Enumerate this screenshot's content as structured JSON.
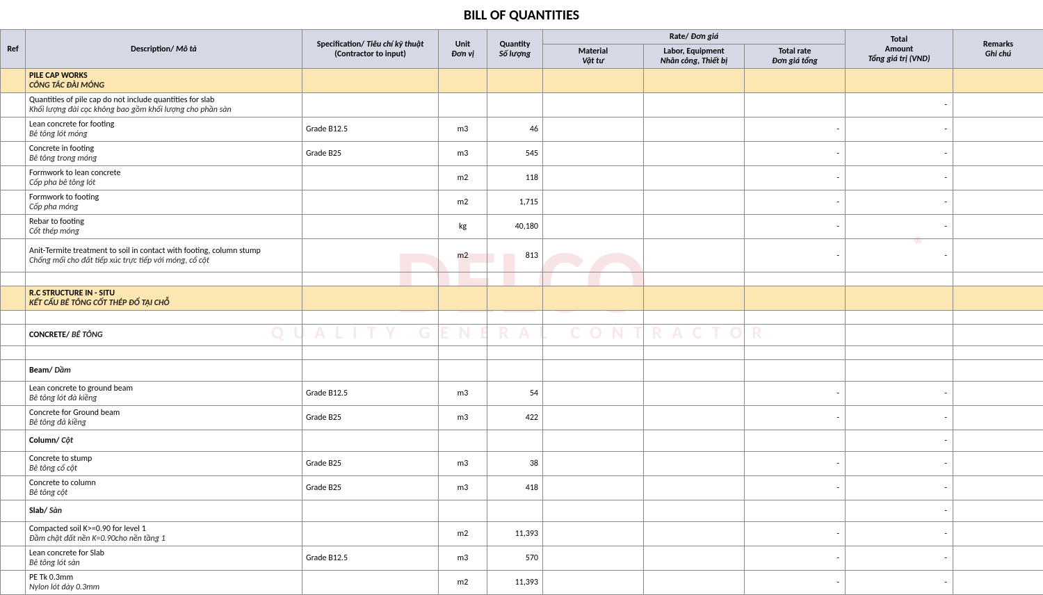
{
  "title": "BILL OF QUANTITIES",
  "watermark": {
    "main": "DELCO",
    "sub": "QUALITY GENERAL CONTRACTOR",
    "reg": "®"
  },
  "header": {
    "ref": "Ref",
    "desc_en": "Description/",
    "desc_vn": "Mô tả",
    "spec_en": "Specification/",
    "spec_vn": "Tiêu chí kỹ thuật",
    "spec_sub": "(Contractor to input)",
    "unit_en": "Unit",
    "unit_vn": "Đơn vị",
    "qty_en": "Quantity",
    "qty_vn": "Số lượng",
    "rate_group_en": "Rate/",
    "rate_group_vn": "Đơn giá",
    "mat_en": "Material",
    "mat_vn": "Vật tư",
    "lab_en": "Labor, Equipment",
    "lab_vn": "Nhân công, Thiết bị",
    "rate_en": "Total rate",
    "rate_vn": "Đơn giá tổng",
    "total_en1": "Total",
    "total_en2": "Amount",
    "total_vn": "Tổng giá trị (VND)",
    "rem_en": "Remarks",
    "rem_vn": "Ghi chú"
  },
  "rows": [
    {
      "type": "section",
      "desc_en": "PILE CAP WORKS",
      "desc_vn": "CÔNG TÁC ĐÀI MÓNG"
    },
    {
      "type": "item",
      "desc_en": "Quantities of pile cap do not include quantities for slab",
      "desc_vn": "Khối lượng đài cọc không bao gồm khối lượng cho phần sàn",
      "spec": "",
      "unit": "",
      "qty": "",
      "rate": "",
      "total": "-"
    },
    {
      "type": "item",
      "desc_en": "Lean concrete for footing",
      "desc_vn": "Bê tông lót móng",
      "spec": "Grade B12.5",
      "unit": "m3",
      "qty": "46",
      "rate": "-",
      "total": "-"
    },
    {
      "type": "item",
      "desc_en": "Concrete in footing",
      "desc_vn": "Bê tông trong móng",
      "spec": "Grade B25",
      "unit": "m3",
      "qty": "545",
      "rate": "-",
      "total": "-"
    },
    {
      "type": "item",
      "desc_en": "Formwork to lean concrete",
      "desc_vn": "Cốp pha bê tông lót",
      "spec": "",
      "unit": "m2",
      "qty": "118",
      "rate": "-",
      "total": "-"
    },
    {
      "type": "item",
      "desc_en": "Formwork to footing",
      "desc_vn": "Cốp pha móng",
      "spec": "",
      "unit": "m2",
      "qty": "1,715",
      "rate": "-",
      "total": "-"
    },
    {
      "type": "item",
      "desc_en": "Rebar to footing",
      "desc_vn": "Cốt thép móng",
      "spec": "",
      "unit": "kg",
      "qty": "40,180",
      "rate": "-",
      "total": "-"
    },
    {
      "type": "item",
      "desc_en": "Anit-Termite treatment to soil in contact with footing, column stump",
      "desc_vn": "Chống mối cho đất tiếp xúc trực tiếp với móng, cổ cột",
      "spec": "",
      "unit": "m2",
      "qty": "813",
      "rate": "-",
      "total": "-",
      "tall": true
    },
    {
      "type": "blank"
    },
    {
      "type": "section",
      "desc_en": "R.C STRUCTURE IN - SITU",
      "desc_vn": "KẾT CẤU BÊ TÔNG CỐT THÉP ĐỔ TẠI CHỖ"
    },
    {
      "type": "blank"
    },
    {
      "type": "subhead",
      "desc_en": "CONCRETE/",
      "desc_vn": "BÊ TÔNG"
    },
    {
      "type": "blank"
    },
    {
      "type": "subhead",
      "desc_en": "Beam/",
      "desc_vn": "Dầm"
    },
    {
      "type": "item",
      "desc_en": "Lean concrete to ground beam",
      "desc_vn": "Bê tông lót đà kiềng",
      "spec": "Grade B12.5",
      "unit": "m3",
      "qty": "54",
      "rate": "-",
      "total": "-"
    },
    {
      "type": "item",
      "desc_en": "Concrete for Ground beam",
      "desc_vn": "Bê tông đà kiềng",
      "spec": "Grade B25",
      "unit": "m3",
      "qty": "422",
      "rate": "-",
      "total": "-"
    },
    {
      "type": "subhead",
      "desc_en": "Column/",
      "desc_vn": "Cột",
      "total": "-"
    },
    {
      "type": "item",
      "desc_en": "Concrete to stump",
      "desc_vn": "Bê tông cổ cột",
      "spec": "Grade B25",
      "unit": "m3",
      "qty": "38",
      "rate": "-",
      "total": "-"
    },
    {
      "type": "item",
      "desc_en": "Concrete to column",
      "desc_vn": "Bê tông cột",
      "spec": "Grade B25",
      "unit": "m3",
      "qty": "418",
      "rate": "-",
      "total": "-"
    },
    {
      "type": "subhead",
      "desc_en": "Slab/",
      "desc_vn": "Sàn",
      "total": "-"
    },
    {
      "type": "item",
      "desc_en": "Compacted soil K>=0.90 for level 1",
      "desc_vn": "Đầm chặt đất nền K=0.90cho nền tầng 1",
      "spec": "",
      "unit": "m2",
      "qty": "11,393",
      "rate": "-",
      "total": "-"
    },
    {
      "type": "item",
      "desc_en": "Lean concrete for Slab",
      "desc_vn": "Bê tông lót sàn",
      "spec": "Grade B12.5",
      "unit": "m3",
      "qty": "570",
      "rate": "-",
      "total": "-"
    },
    {
      "type": "item",
      "desc_en": "PE Tk 0.3mm",
      "desc_vn": "Nylon lót dày 0.3mm",
      "spec": "",
      "unit": "m2",
      "qty": "11,393",
      "rate": "-",
      "total": "-"
    }
  ]
}
